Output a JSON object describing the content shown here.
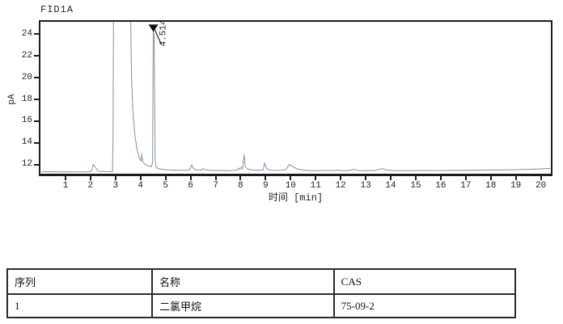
{
  "chart": {
    "title": "FID1A",
    "xlabel": "时间 [min]",
    "ylabel": "pA",
    "peak_label": "4.514"
  },
  "chart_data": {
    "type": "line",
    "title": "FID1A",
    "xlabel": "时间 [min]",
    "ylabel": "pA",
    "xlim": [
      0,
      20.4
    ],
    "ylim": [
      11.15,
      25.15
    ],
    "x_ticks": [
      1,
      2,
      3,
      4,
      5,
      6,
      7,
      8,
      9,
      10,
      11,
      12,
      13,
      14,
      15,
      16,
      17,
      18,
      19,
      20
    ],
    "y_ticks": [
      12,
      14,
      16,
      18,
      20,
      22,
      24
    ],
    "grid": false,
    "legend": "none",
    "line_color": "#8c99ac",
    "axis_color": "#1c1c1c",
    "annotated_peaks": [
      {
        "rt": 4.514,
        "label": "4.514",
        "apex_pA": 24.3,
        "compound": "二氯甲烷"
      }
    ],
    "saturated_solvent_region": {
      "from_min": 2.9,
      "to_min": 3.6,
      "note": "off-scale"
    },
    "trace": [
      [
        0.05,
        11.33
      ],
      [
        0.6,
        11.33
      ],
      [
        1.2,
        11.32
      ],
      [
        1.8,
        11.33
      ],
      [
        2.0,
        11.34
      ],
      [
        2.06,
        11.5
      ],
      [
        2.11,
        12.0
      ],
      [
        2.18,
        11.8
      ],
      [
        2.28,
        11.45
      ],
      [
        2.4,
        11.36
      ],
      [
        2.7,
        11.34
      ],
      [
        2.88,
        11.34
      ],
      [
        2.9,
        14.2
      ],
      [
        2.93,
        30
      ],
      [
        3.58,
        30
      ],
      [
        3.64,
        20
      ],
      [
        3.7,
        16.8
      ],
      [
        3.78,
        14.6
      ],
      [
        3.87,
        13.3
      ],
      [
        3.97,
        12.5
      ],
      [
        4.02,
        12.35
      ],
      [
        4.05,
        12.95
      ],
      [
        4.08,
        12.3
      ],
      [
        4.18,
        12.0
      ],
      [
        4.3,
        11.88
      ],
      [
        4.44,
        11.8
      ],
      [
        4.48,
        12.2
      ],
      [
        4.51,
        24.3
      ],
      [
        4.545,
        23.8
      ],
      [
        4.58,
        12.6
      ],
      [
        4.62,
        11.75
      ],
      [
        4.7,
        11.62
      ],
      [
        4.85,
        11.55
      ],
      [
        5.1,
        11.5
      ],
      [
        5.5,
        11.47
      ],
      [
        5.9,
        11.46
      ],
      [
        5.98,
        11.55
      ],
      [
        6.04,
        11.97
      ],
      [
        6.12,
        11.65
      ],
      [
        6.2,
        11.5
      ],
      [
        6.32,
        11.52
      ],
      [
        6.42,
        11.47
      ],
      [
        6.52,
        11.63
      ],
      [
        6.6,
        11.5
      ],
      [
        6.8,
        11.46
      ],
      [
        7.0,
        11.44
      ],
      [
        7.2,
        11.46
      ],
      [
        7.45,
        11.43
      ],
      [
        7.7,
        11.45
      ],
      [
        7.87,
        11.5
      ],
      [
        7.92,
        11.68
      ],
      [
        7.97,
        11.55
      ],
      [
        8.03,
        11.75
      ],
      [
        8.08,
        11.58
      ],
      [
        8.14,
        12.9
      ],
      [
        8.19,
        11.8
      ],
      [
        8.28,
        11.58
      ],
      [
        8.45,
        11.5
      ],
      [
        8.65,
        11.46
      ],
      [
        8.9,
        11.5
      ],
      [
        8.96,
        12.15
      ],
      [
        9.04,
        11.62
      ],
      [
        9.15,
        11.5
      ],
      [
        9.35,
        11.45
      ],
      [
        9.6,
        11.46
      ],
      [
        9.8,
        11.52
      ],
      [
        9.95,
        12.0
      ],
      [
        10.08,
        11.82
      ],
      [
        10.25,
        11.6
      ],
      [
        10.5,
        11.48
      ],
      [
        10.8,
        11.44
      ],
      [
        11.1,
        11.43
      ],
      [
        11.4,
        11.45
      ],
      [
        11.7,
        11.43
      ],
      [
        11.85,
        11.48
      ],
      [
        12.0,
        11.43
      ],
      [
        12.3,
        11.44
      ],
      [
        12.55,
        11.55
      ],
      [
        12.7,
        11.45
      ],
      [
        13.0,
        11.43
      ],
      [
        13.35,
        11.44
      ],
      [
        13.68,
        11.63
      ],
      [
        13.8,
        11.5
      ],
      [
        14.1,
        11.44
      ],
      [
        14.5,
        11.43
      ],
      [
        15.0,
        11.44
      ],
      [
        15.5,
        11.44
      ],
      [
        16.0,
        11.45
      ],
      [
        16.5,
        11.46
      ],
      [
        17.0,
        11.47
      ],
      [
        17.5,
        11.48
      ],
      [
        18.0,
        11.49
      ],
      [
        18.5,
        11.5
      ],
      [
        19.0,
        11.52
      ],
      [
        19.5,
        11.55
      ],
      [
        19.9,
        11.58
      ],
      [
        20.2,
        11.62
      ],
      [
        20.38,
        11.64
      ]
    ]
  },
  "table": {
    "headers": [
      "序列",
      "名称",
      "CAS"
    ],
    "rows": [
      [
        "1",
        "二氯甲烷",
        "75-09-2"
      ]
    ]
  }
}
